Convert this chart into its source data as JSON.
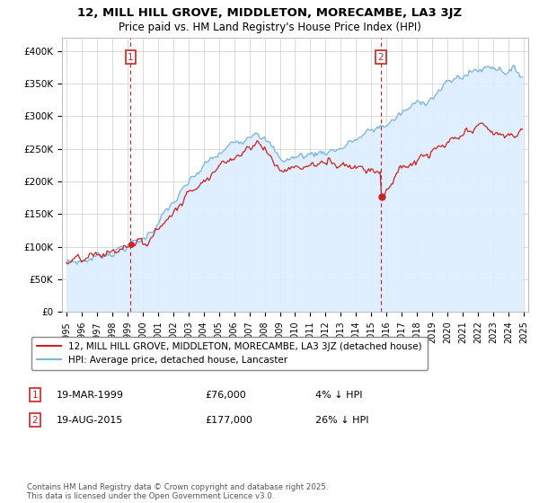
{
  "title": "12, MILL HILL GROVE, MIDDLETON, MORECAMBE, LA3 3JZ",
  "subtitle": "Price paid vs. HM Land Registry's House Price Index (HPI)",
  "ylim": [
    0,
    420000
  ],
  "yticks": [
    0,
    50000,
    100000,
    150000,
    200000,
    250000,
    300000,
    350000,
    400000
  ],
  "ytick_labels": [
    "£0",
    "£50K",
    "£100K",
    "£150K",
    "£200K",
    "£250K",
    "£300K",
    "£350K",
    "£400K"
  ],
  "hpi_color": "#7ab4d8",
  "hpi_fill_color": "#ddeeff",
  "price_color": "#cc2222",
  "marker1_label": "1",
  "marker2_label": "2",
  "marker1_year": 1999.21,
  "marker2_year": 2015.63,
  "legend_line1": "12, MILL HILL GROVE, MIDDLETON, MORECAMBE, LA3 3JZ (detached house)",
  "legend_line2": "HPI: Average price, detached house, Lancaster",
  "annotation1_date": "19-MAR-1999",
  "annotation1_price": "£76,000",
  "annotation1_pct": "4% ↓ HPI",
  "annotation2_date": "19-AUG-2015",
  "annotation2_price": "£177,000",
  "annotation2_pct": "26% ↓ HPI",
  "footnote": "Contains HM Land Registry data © Crown copyright and database right 2025.\nThis data is licensed under the Open Government Licence v3.0.",
  "bg_color": "#e8f0f8",
  "plot_bg": "white"
}
